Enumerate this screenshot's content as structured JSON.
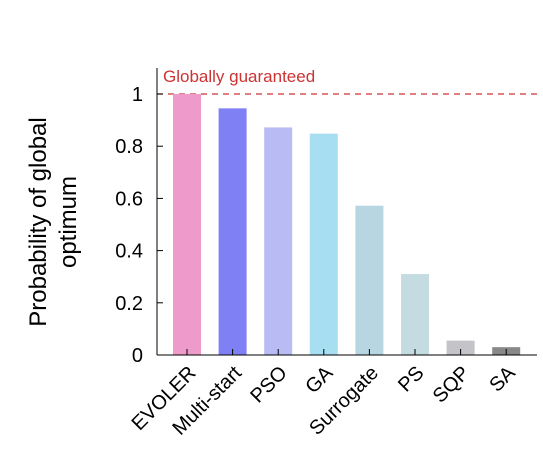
{
  "chart_data": {
    "type": "bar",
    "title": "",
    "xlabel": "",
    "ylabel": "Probability of global optimum",
    "ylabel_lines": [
      "Probability of global",
      "optimum"
    ],
    "ylim": [
      0,
      1
    ],
    "yticks": [
      0,
      0.2,
      0.4,
      0.6,
      0.8,
      1
    ],
    "ytick_labels": [
      "0",
      "0.2",
      "0.4",
      "0.6",
      "0.8",
      "1"
    ],
    "categories": [
      "EVOLER",
      "Multi-start",
      "PSO",
      "GA",
      "Surrogate",
      "PS",
      "SQP",
      "SA"
    ],
    "values": [
      1.0,
      0.945,
      0.872,
      0.848,
      0.572,
      0.31,
      0.055,
      0.03
    ],
    "colors": [
      "#ee9bcb",
      "#8080f5",
      "#b9bbf5",
      "#a7def2",
      "#b7d6e2",
      "#c4dbe2",
      "#c3c3c8",
      "#888888"
    ],
    "reference_line": {
      "value": 1,
      "label": "Globally guaranteed",
      "color": "#cc3333",
      "style": "dashed"
    },
    "grid": false,
    "legend": "none"
  }
}
